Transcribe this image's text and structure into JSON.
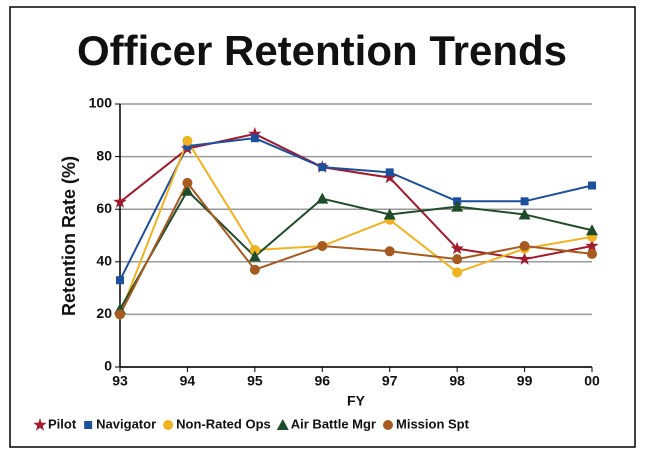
{
  "chart_data": {
    "type": "line",
    "title": "Officer Retention Trends",
    "x_label": "FY",
    "y_label": "Retention Rate (%)",
    "categories": [
      "93",
      "94",
      "95",
      "96",
      "97",
      "98",
      "99",
      "00"
    ],
    "series": [
      {
        "name": "Pilot",
        "color": "#a3192e",
        "marker": "star",
        "values": [
          62.7,
          83,
          88.6,
          76,
          72,
          45,
          41,
          46
        ]
      },
      {
        "name": "Navigator",
        "color": "#1c4f9c",
        "marker": "square",
        "values": [
          33,
          84,
          87,
          76,
          74,
          63,
          63,
          69
        ]
      },
      {
        "name": "Non-Rated Ops",
        "color": "#f2b21f",
        "marker": "circle",
        "values": [
          20,
          86,
          44.5,
          46,
          56,
          36,
          45,
          49.5
        ]
      },
      {
        "name": "Air Battle Mgr",
        "color": "#1f4d2a",
        "marker": "triangle",
        "values": [
          22,
          67,
          42,
          64,
          58,
          61,
          58,
          52
        ]
      },
      {
        "name": "Mission Spt",
        "color": "#a65a1f",
        "marker": "circle",
        "values": [
          20,
          70,
          37,
          46,
          44,
          41,
          46,
          43
        ]
      }
    ],
    "ylim": [
      0,
      100
    ],
    "yticks": [
      0,
      20,
      40,
      60,
      80,
      100
    ],
    "grid": true,
    "legend": "bottom"
  }
}
